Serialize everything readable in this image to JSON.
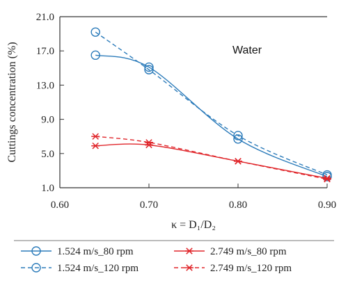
{
  "chart_data": {
    "type": "line",
    "xlabel": "κ = D₁/D₂",
    "ylabel": "Cuttings concentration (%)",
    "xlim": [
      0.6,
      0.9
    ],
    "ylim": [
      1.0,
      21.0
    ],
    "xticks": [
      "0.60",
      "0.70",
      "0.80",
      "0.90"
    ],
    "yticks": [
      "1.0",
      "5.0",
      "9.0",
      "13.0",
      "17.0",
      "21.0"
    ],
    "annotation": "Water",
    "grid": false,
    "legend_position": "bottom",
    "series": [
      {
        "name": "1.524 m/s_80 rpm",
        "color": "#2b7bba",
        "marker": "circle",
        "dash": "solid",
        "x": [
          0.64,
          0.7,
          0.8,
          0.9
        ],
        "y": [
          16.5,
          15.1,
          6.7,
          2.3
        ]
      },
      {
        "name": "1.524 m/s_120 rpm",
        "color": "#2b7bba",
        "marker": "circle",
        "dash": "dashed",
        "x": [
          0.64,
          0.7,
          0.8,
          0.9
        ],
        "y": [
          19.2,
          14.8,
          7.1,
          2.5
        ]
      },
      {
        "name": "2.749 m/s_80 rpm",
        "color": "#e0262b",
        "marker": "star",
        "dash": "solid",
        "x": [
          0.64,
          0.7,
          0.8,
          0.9
        ],
        "y": [
          5.9,
          6.0,
          4.1,
          2.1
        ]
      },
      {
        "name": "2.749 m/s_120 rpm",
        "color": "#e0262b",
        "marker": "star",
        "dash": "dashed",
        "x": [
          0.64,
          0.7,
          0.8,
          0.9
        ],
        "y": [
          7.0,
          6.3,
          4.1,
          2.0
        ]
      }
    ]
  }
}
